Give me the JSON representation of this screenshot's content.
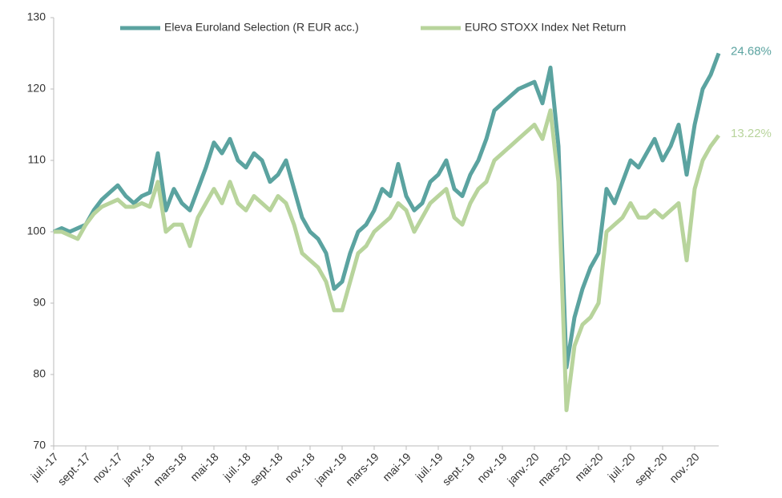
{
  "chart_data": {
    "type": "line",
    "categories": [
      "juil.-17",
      null,
      null,
      null,
      "sept.-17",
      null,
      null,
      null,
      "nov.-17",
      null,
      null,
      null,
      "janv.-18",
      null,
      null,
      null,
      "mars-18",
      null,
      null,
      null,
      "mai-18",
      null,
      null,
      null,
      "juil.-18",
      null,
      null,
      null,
      "sept.-18",
      null,
      null,
      null,
      "nov.-18",
      null,
      null,
      null,
      "janv.-19",
      null,
      null,
      null,
      "mars-19",
      null,
      null,
      null,
      "mai-19",
      null,
      null,
      null,
      "juil.-19",
      null,
      null,
      null,
      "sept.-19",
      null,
      null,
      null,
      "nov.-19",
      null,
      null,
      null,
      "janv.-20",
      null,
      null,
      null,
      "mars-20",
      null,
      null,
      null,
      "mai-20",
      null,
      null,
      null,
      "juil.-20",
      null,
      null,
      null,
      "sept.-20",
      null,
      null,
      null,
      "nov.-20",
      null,
      null,
      null
    ],
    "series": [
      {
        "name": "Eleva Euroland Selection (R EUR acc.)",
        "color": "#5ba3a0",
        "end_label": "24.68%",
        "values": [
          100,
          100.5,
          100,
          100.5,
          101,
          103,
          104.5,
          105.5,
          106.5,
          105,
          104,
          105,
          105.5,
          111,
          103,
          106,
          104,
          103,
          106,
          109,
          112.5,
          111,
          113,
          110,
          109,
          111,
          110,
          107,
          108,
          110,
          106,
          102,
          100,
          99,
          97,
          92,
          93,
          97,
          100,
          101,
          103,
          106,
          105,
          109.5,
          105,
          103,
          104,
          107,
          108,
          110,
          106,
          105,
          108,
          110,
          113,
          117,
          118,
          119,
          120,
          120.5,
          121,
          118,
          123,
          112,
          81,
          88,
          92,
          95,
          97,
          106,
          104,
          107,
          110,
          109,
          111,
          113,
          110,
          112,
          115,
          108,
          115,
          120,
          122,
          125
        ]
      },
      {
        "name": "EURO STOXX Index Net Return",
        "color": "#b8d49c",
        "end_label": "13.22%",
        "values": [
          100,
          100,
          99.5,
          99,
          101,
          102.5,
          103.5,
          104,
          104.5,
          103.5,
          103.5,
          104,
          103.5,
          107,
          100,
          101,
          101,
          98,
          102,
          104,
          106,
          104,
          107,
          104,
          103,
          105,
          104,
          103,
          105,
          104,
          101,
          97,
          96,
          95,
          93,
          89,
          89,
          93,
          97,
          98,
          100,
          101,
          102,
          104,
          103,
          100,
          102,
          104,
          105,
          106,
          102,
          101,
          104,
          106,
          107,
          110,
          111,
          112,
          113,
          114,
          115,
          113,
          117,
          107,
          75,
          84,
          87,
          88,
          90,
          100,
          101,
          102,
          104,
          102,
          102,
          103,
          102,
          103,
          104,
          96,
          106,
          110,
          112,
          113.5
        ]
      }
    ],
    "ylim": [
      70,
      130
    ],
    "yticks": [
      70,
      80,
      90,
      100,
      110,
      120,
      130
    ],
    "legend": "top"
  }
}
